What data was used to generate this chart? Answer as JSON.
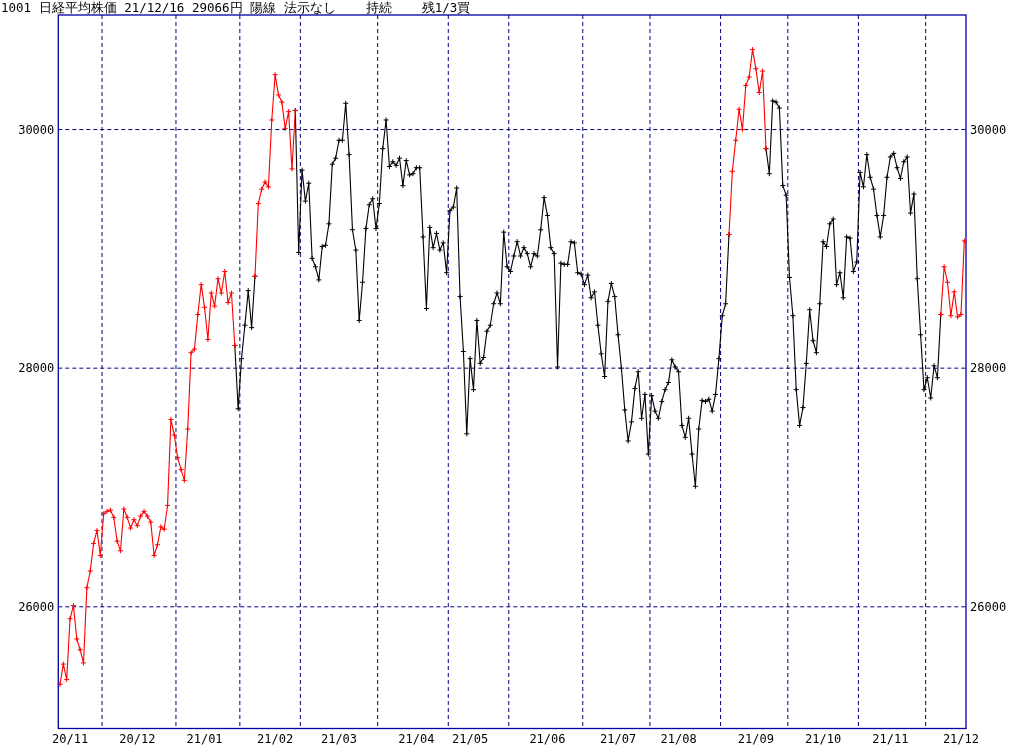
{
  "chart_data": {
    "type": "line",
    "title": "1001 日経平均株価 21/12/16 29066円 陽線 法示なし    持続    残1/3買",
    "categories": [
      null,
      null,
      null,
      "20/11",
      null,
      null,
      null,
      null,
      null,
      null,
      null,
      null,
      null,
      null,
      null,
      null,
      null,
      null,
      null,
      null,
      null,
      null,
      null,
      "20/12",
      null,
      null,
      null,
      null,
      null,
      null,
      null,
      null,
      null,
      null,
      null,
      null,
      null,
      null,
      null,
      null,
      null,
      null,
      null,
      "21/01",
      null,
      null,
      null,
      null,
      null,
      null,
      null,
      null,
      null,
      null,
      null,
      null,
      null,
      null,
      null,
      null,
      null,
      null,
      null,
      null,
      "21/02",
      null,
      null,
      null,
      null,
      null,
      null,
      null,
      null,
      null,
      null,
      null,
      null,
      null,
      null,
      null,
      null,
      null,
      null,
      "21/03",
      null,
      null,
      null,
      null,
      null,
      null,
      null,
      null,
      null,
      null,
      null,
      null,
      null,
      null,
      null,
      null,
      null,
      null,
      null,
      null,
      null,
      null,
      "21/04",
      null,
      null,
      null,
      null,
      null,
      null,
      null,
      null,
      null,
      null,
      null,
      null,
      null,
      null,
      null,
      "21/05",
      null,
      null,
      null,
      null,
      null,
      null,
      null,
      null,
      null,
      null,
      null,
      null,
      null,
      null,
      null,
      null,
      null,
      null,
      null,
      null,
      null,
      null,
      "21/06",
      null,
      null,
      null,
      null,
      null,
      null,
      null,
      null,
      null,
      null,
      null,
      null,
      null,
      null,
      null,
      null,
      null,
      null,
      null,
      null,
      "21/07",
      null,
      null,
      null,
      null,
      null,
      null,
      null,
      null,
      null,
      null,
      null,
      null,
      null,
      null,
      null,
      null,
      null,
      "21/08",
      null,
      null,
      null,
      null,
      null,
      null,
      null,
      null,
      null,
      null,
      null,
      null,
      null,
      null,
      null,
      null,
      null,
      null,
      null,
      null,
      null,
      null,
      "21/09",
      null,
      null,
      null,
      null,
      null,
      null,
      null,
      null,
      null,
      null,
      null,
      null,
      null,
      null,
      null,
      null,
      null,
      null,
      null,
      "21/10",
      null,
      null,
      null,
      null,
      null,
      null,
      null,
      null,
      null,
      null,
      null,
      null,
      null,
      null,
      null,
      null,
      null,
      null,
      null,
      "21/11",
      null,
      null,
      null,
      null,
      null,
      null,
      null,
      null,
      null,
      null,
      null,
      null,
      null,
      null,
      null,
      null,
      null,
      null,
      null,
      null,
      "21/12",
      null
    ],
    "ylim": [
      24980,
      30960
    ],
    "yticks": [
      26000,
      28000,
      30000
    ],
    "y2lim": [
      24980,
      30960
    ],
    "y2ticks": [
      26000,
      28000,
      30000
    ],
    "grid": "y",
    "marker": "cross",
    "line_style": "solid",
    "series": [
      {
        "color": "#000000",
        "values": [
          null,
          null,
          null,
          null,
          null,
          null,
          null,
          null,
          null,
          null,
          null,
          null,
          null,
          null,
          null,
          null,
          null,
          null,
          null,
          null,
          null,
          null,
          null,
          null,
          null,
          null,
          null,
          null,
          null,
          null,
          null,
          null,
          null,
          null,
          null,
          null,
          null,
          null,
          null,
          null,
          null,
          null,
          null,
          null,
          null,
          null,
          null,
          null,
          null,
          null,
          null,
          null,
          28190,
          27660,
          28080,
          28360,
          28650,
          28340,
          28770,
          null,
          null,
          null,
          null,
          null,
          null,
          null,
          null,
          null,
          null,
          null,
          30160,
          28970,
          29660,
          29400,
          29550,
          28920,
          28850,
          28740,
          29020,
          29030,
          29210,
          29710,
          29760,
          29910,
          29910,
          30220,
          29790,
          29160,
          28990,
          28400,
          28720,
          29170,
          29370,
          29420,
          29170,
          29380,
          29840,
          30080,
          29690,
          29730,
          29700,
          29760,
          29530,
          29740,
          29620,
          29630,
          29680,
          29680,
          29100,
          28500,
          29180,
          29010,
          29130,
          28990,
          29050,
          28800,
          29320,
          29350,
          29510,
          28600,
          28140,
          27450,
          28080,
          27820,
          28400,
          28040,
          28090,
          28310,
          28360,
          28540,
          28630,
          28540,
          29140,
          28850,
          28810,
          28940,
          29060,
          28940,
          29010,
          28960,
          28850,
          28960,
          28940,
          29160,
          29430,
          29280,
          29010,
          28960,
          28010,
          28880,
          28870,
          28870,
          29060,
          29050,
          28800,
          28790,
          28700,
          28780,
          28590,
          28640,
          28360,
          28120,
          27930,
          28560,
          28710,
          28600,
          28280,
          28000,
          27650,
          27390,
          27550,
          27830,
          27970,
          27580,
          27780,
          27280,
          27770,
          27640,
          27580,
          27720,
          27820,
          27880,
          28070,
          28010,
          27970,
          27520,
          27420,
          27580,
          27280,
          27010,
          27490,
          27730,
          27720,
          27740,
          27640,
          27780,
          28080,
          28440,
          28540,
          29120,
          null,
          null,
          null,
          null,
          null,
          null,
          null,
          null,
          null,
          null,
          29840,
          29630,
          30240,
          30230,
          30180,
          29530,
          29450,
          28760,
          28440,
          27820,
          27520,
          27670,
          28040,
          28490,
          28230,
          28130,
          28540,
          29060,
          29020,
          29210,
          29250,
          28700,
          28800,
          28590,
          29100,
          29090,
          28810,
          28890,
          29640,
          29520,
          29790,
          29600,
          29500,
          29280,
          29100,
          29280,
          29600,
          29770,
          29800,
          29680,
          29590,
          29730,
          29770,
          29300,
          29460,
          28750,
          28280,
          27820,
          27920,
          27750,
          28020,
          27920,
          28450,
          null,
          null,
          null,
          null,
          null,
          null,
          null
        ]
      },
      {
        "color": "#ff0000",
        "values": [
          25350,
          25520,
          25390,
          25900,
          26010,
          25730,
          25640,
          25530,
          26160,
          26300,
          26530,
          26640,
          26430,
          26780,
          26800,
          26810,
          26750,
          26550,
          26470,
          26820,
          26750,
          26660,
          26730,
          26680,
          26760,
          26800,
          26760,
          26710,
          26430,
          26520,
          26670,
          26650,
          26850,
          27570,
          27440,
          27250,
          27150,
          27060,
          27490,
          28130,
          28160,
          28450,
          28700,
          28510,
          28240,
          28630,
          28520,
          28750,
          28630,
          28810,
          28550,
          28630,
          28190,
          null,
          null,
          null,
          null,
          null,
          28770,
          29380,
          29500,
          29560,
          29520,
          30080,
          30460,
          30290,
          30230,
          30010,
          30150,
          29670,
          30160,
          null,
          null,
          null,
          null,
          null,
          null,
          null,
          null,
          null,
          null,
          null,
          null,
          null,
          null,
          null,
          null,
          null,
          null,
          null,
          null,
          null,
          null,
          null,
          null,
          null,
          null,
          null,
          null,
          null,
          null,
          null,
          null,
          null,
          null,
          null,
          null,
          null,
          null,
          null,
          null,
          null,
          null,
          null,
          null,
          null,
          null,
          null,
          null,
          null,
          null,
          null,
          null,
          null,
          null,
          null,
          null,
          null,
          null,
          null,
          null,
          null,
          null,
          null,
          null,
          null,
          null,
          null,
          null,
          null,
          null,
          null,
          null,
          null,
          null,
          null,
          null,
          null,
          null,
          null,
          null,
          null,
          null,
          null,
          null,
          null,
          null,
          null,
          null,
          null,
          null,
          null,
          null,
          null,
          null,
          null,
          null,
          null,
          null,
          null,
          null,
          null,
          null,
          null,
          null,
          null,
          null,
          null,
          null,
          null,
          null,
          null,
          null,
          null,
          null,
          null,
          null,
          null,
          null,
          null,
          null,
          null,
          null,
          null,
          null,
          null,
          null,
          null,
          null,
          29120,
          29650,
          29910,
          30170,
          30000,
          30370,
          30440,
          30670,
          30510,
          30310,
          30490,
          29840,
          null,
          null,
          null,
          null,
          null,
          null,
          null,
          null,
          null,
          null,
          null,
          null,
          null,
          null,
          null,
          null,
          null,
          null,
          null,
          null,
          null,
          null,
          null,
          null,
          null,
          null,
          null,
          null,
          null,
          null,
          null,
          null,
          null,
          null,
          null,
          null,
          null,
          null,
          null,
          null,
          null,
          null,
          null,
          null,
          null,
          null,
          null,
          null,
          null,
          null,
          null,
          28450,
          28850,
          28720,
          28440,
          28640,
          28430,
          28450,
          29066
        ]
      }
    ]
  }
}
